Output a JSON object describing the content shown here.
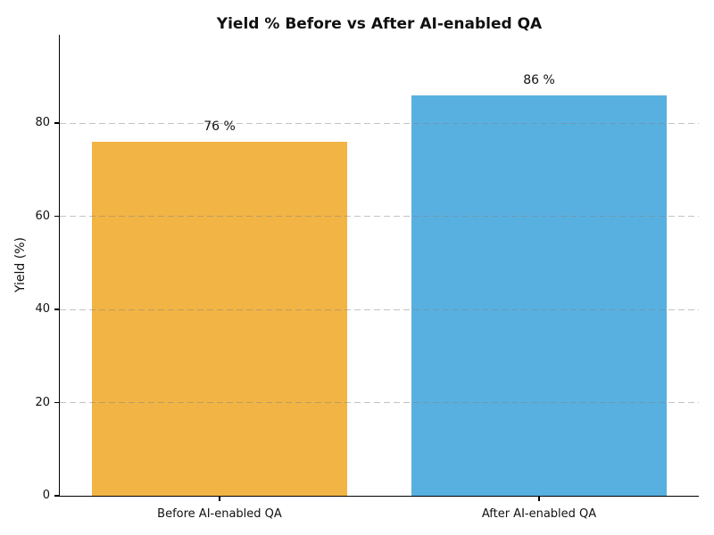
{
  "chart_data": {
    "type": "bar",
    "title": "Yield % Before vs After AI-enabled QA",
    "categories": [
      "Before AI-enabled QA",
      "After AI-enabled QA"
    ],
    "values": [
      76,
      86
    ],
    "bar_labels": [
      "76 %",
      "86 %"
    ],
    "bar_colors": [
      "#F2B445",
      "#58B0E0"
    ],
    "xlabel": "",
    "ylabel": "Yield (%)",
    "ylim": [
      0,
      99
    ],
    "yticks": [
      0,
      20,
      40,
      60,
      80
    ],
    "grid": {
      "axis": "y",
      "style": "dashed",
      "color": "#cccccc",
      "at": [
        20,
        40,
        60,
        80
      ]
    },
    "legend": "none",
    "colors": {
      "background": "#ffffff",
      "text": "#111111",
      "axis": "#000000"
    }
  }
}
